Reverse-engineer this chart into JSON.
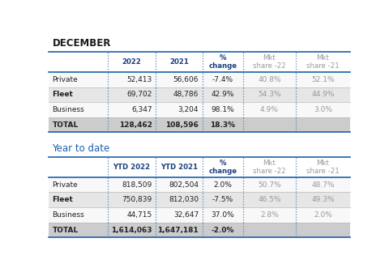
{
  "dec_title": "DECEMBER",
  "ytd_title": "Year to date",
  "dec_headers": [
    "",
    "2022",
    "2021",
    "%\nchange",
    "Mkt\nshare -22",
    "Mkt\nshare -21"
  ],
  "dec_rows": [
    [
      "Private",
      "52,413",
      "56,606",
      "-7.4%",
      "40.8%",
      "52.1%"
    ],
    [
      "Fleet",
      "69,702",
      "48,786",
      "42.9%",
      "54.3%",
      "44.9%"
    ],
    [
      "Business",
      "6,347",
      "3,204",
      "98.1%",
      "4.9%",
      "3.0%"
    ],
    [
      "TOTAL",
      "128,462",
      "108,596",
      "18.3%",
      "",
      ""
    ]
  ],
  "ytd_headers": [
    "",
    "YTD 2022",
    "YTD 2021",
    "%\nchange",
    "Mkt\nshare -22",
    "Mkt\nshare -21"
  ],
  "ytd_rows": [
    [
      "Private",
      "818,509",
      "802,504",
      "2.0%",
      "50.7%",
      "48.7%"
    ],
    [
      "Fleet",
      "750,839",
      "812,030",
      "-7.5%",
      "46.5%",
      "49.3%"
    ],
    [
      "Business",
      "44,715",
      "32,647",
      "37.0%",
      "2.8%",
      "2.0%"
    ],
    [
      "TOTAL",
      "1,614,063",
      "1,647,181",
      "-2.0%",
      "",
      ""
    ]
  ],
  "col_aligns_data": [
    "left",
    "right",
    "right",
    "center",
    "center",
    "center"
  ],
  "header_bg": "#ffffff",
  "row_alt_bg": "#e6e6e6",
  "row_norm_bg": "#f8f8f8",
  "total_bg": "#cccccc",
  "header_border_color": "#1f5faa",
  "dotted_col_color": "#5580bb",
  "title_color_dec": "#1a1a1a",
  "title_color_ytd": "#1f5faa",
  "header_text_bold_color": "#1f4080",
  "mkt_text_color": "#999999",
  "body_text_color": "#222222",
  "background": "#ffffff"
}
